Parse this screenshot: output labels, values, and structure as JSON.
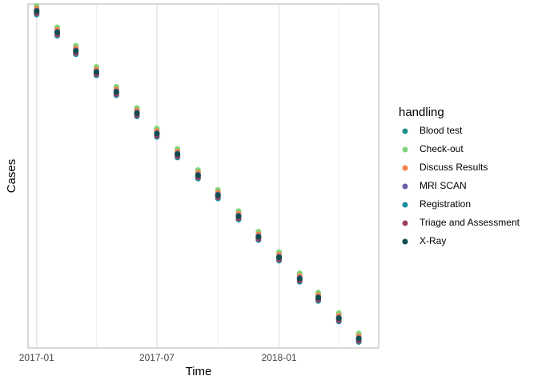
{
  "chart_data": {
    "type": "scatter",
    "x_label": "Time",
    "y_label": "Cases",
    "x": [
      "2017-01-01",
      "2017-02-01",
      "2017-03-01",
      "2017-04-01",
      "2017-05-01",
      "2017-06-01",
      "2017-07-01",
      "2017-08-01",
      "2017-09-01",
      "2017-10-01",
      "2017-11-01",
      "2017-12-01",
      "2018-01-01",
      "2018-02-01",
      "2018-03-01",
      "2018-04-01",
      "2018-05-01"
    ],
    "xlim": [
      "2016-12-19",
      "2018-05-31"
    ],
    "xticks": [
      {
        "value": "2017-01-01",
        "label": "2017-01"
      },
      {
        "value": "2017-07-01",
        "label": "2017-07"
      },
      {
        "value": "2018-01-01",
        "label": "2018-01"
      }
    ],
    "xminorticks": [
      "2017-04-01",
      "2017-10-01",
      "2018-04-01"
    ],
    "ylim": [
      -10,
      510
    ],
    "grid": true,
    "legend_title": "handling",
    "legend_position": "right",
    "series": [
      {
        "name": "Blood test",
        "color": "#21908c",
        "values": [
          498,
          466,
          438,
          406,
          376,
          344,
          313,
          282,
          250,
          220,
          188,
          157,
          126,
          94,
          65,
          34,
          3
        ]
      },
      {
        "name": "Check-out",
        "color": "#7fd67a",
        "values": [
          507,
          475,
          447,
          415,
          385,
          353,
          322,
          291,
          259,
          229,
          197,
          166,
          135,
          103,
          74,
          43,
          12
        ]
      },
      {
        "name": "Discuss Results",
        "color": "#f2844b",
        "values": [
          503,
          471,
          443,
          411,
          381,
          349,
          318,
          287,
          255,
          225,
          193,
          162,
          131,
          99,
          70,
          39,
          8
        ]
      },
      {
        "name": "MRI SCAN",
        "color": "#6b5fa8",
        "values": [
          500,
          468,
          440,
          408,
          378,
          346,
          315,
          284,
          252,
          222,
          190,
          159,
          128,
          96,
          67,
          36,
          5
        ]
      },
      {
        "name": "Registration",
        "color": "#1a8fa0",
        "values": [
          494,
          462,
          434,
          402,
          372,
          340,
          309,
          278,
          246,
          216,
          184,
          153,
          122,
          90,
          61,
          30,
          -1
        ]
      },
      {
        "name": "Triage and Assessment",
        "color": "#9e3d63",
        "values": [
          496,
          464,
          436,
          404,
          374,
          342,
          311,
          280,
          248,
          218,
          186,
          155,
          124,
          92,
          63,
          32,
          1
        ]
      },
      {
        "name": "X-Ray",
        "color": "#0e4d4f",
        "values": [
          499,
          467,
          439,
          407,
          377,
          345,
          314,
          283,
          251,
          221,
          189,
          158,
          127,
          95,
          66,
          35,
          4
        ]
      }
    ]
  }
}
